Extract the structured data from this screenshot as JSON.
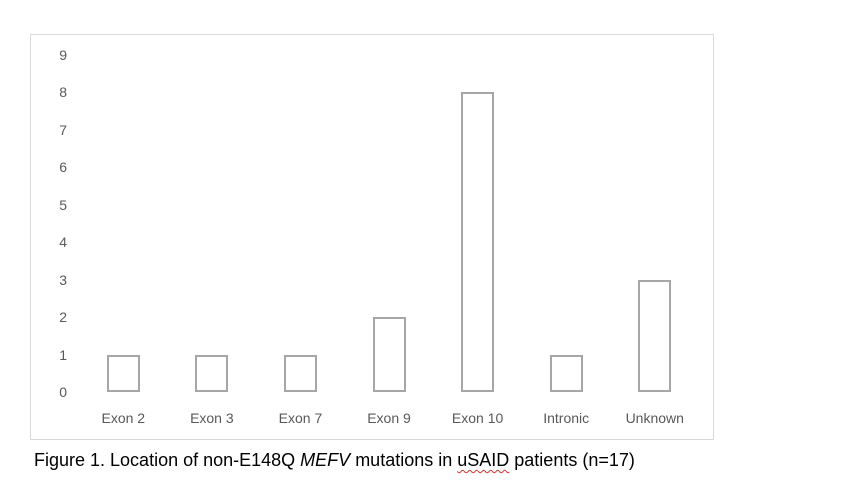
{
  "chart_data": {
    "type": "bar",
    "categories": [
      "Exon 2",
      "Exon 3",
      "Exon 7",
      "Exon 9",
      "Exon 10",
      "Intronic",
      "Unknown"
    ],
    "values": [
      1,
      1,
      1,
      2,
      8,
      1,
      3
    ],
    "title": "",
    "xlabel": "",
    "ylabel": "",
    "ylim": [
      0,
      9
    ],
    "ytick_step": 1,
    "grid": false,
    "legend": "none",
    "bar_fill": "#ffffff",
    "bar_border_color": "#a6a6a6",
    "axis_label_color": "#595959",
    "frame_border_color": "#d9d9d9"
  },
  "caption": {
    "prefix": "Figure 1. Location of non-E148Q ",
    "gene": "MEFV",
    "middle": " mutations in ",
    "misspelled_word": "uSAID",
    "suffix": " patients (n=17)"
  }
}
